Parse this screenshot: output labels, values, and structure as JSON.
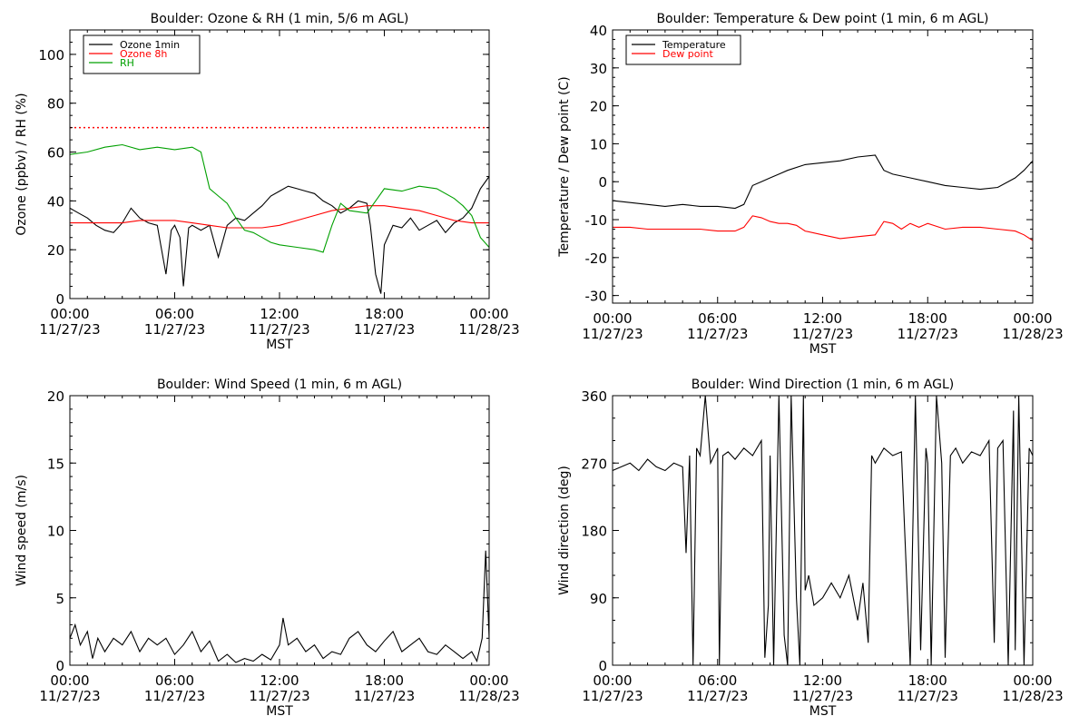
{
  "chart_data": [
    {
      "id": "ozone",
      "type": "line",
      "title": "Boulder: Ozone & RH (1 min, 5/6 m AGL)",
      "xlabel": "MST",
      "ylabel": "Ozone (ppbv) / RH (%)",
      "xlim": [
        0,
        24
      ],
      "ylim": [
        0,
        110
      ],
      "yticks": [
        0,
        20,
        40,
        60,
        80,
        100
      ],
      "xtick_times": [
        "00:00",
        "06:00",
        "12:00",
        "18:00",
        "00:00"
      ],
      "xtick_dates": [
        "11/27/23",
        "11/27/23",
        "11/27/23",
        "11/27/23",
        "11/28/23"
      ],
      "legend": {
        "position": "top-left",
        "items": [
          {
            "label": "Ozone 1min",
            "color": "#000000"
          },
          {
            "label": "Ozone 8h",
            "color": "#ff0000"
          },
          {
            "label": "RH",
            "color": "#00a000"
          }
        ]
      },
      "reference_line": {
        "y": 70,
        "color": "#ff0000",
        "style": "dotted"
      },
      "series": [
        {
          "name": "Ozone 1min",
          "color": "#000000",
          "x": [
            0,
            0.5,
            1,
            1.5,
            2,
            2.5,
            3,
            3.5,
            4,
            4.5,
            5,
            5.2,
            5.5,
            5.8,
            6,
            6.3,
            6.5,
            6.8,
            7,
            7.5,
            8,
            8.5,
            9,
            9.5,
            10,
            10.5,
            11,
            11.5,
            12,
            12.5,
            13,
            13.5,
            14,
            14.5,
            15,
            15.5,
            16,
            16.5,
            17,
            17.2,
            17.5,
            17.8,
            18,
            18.5,
            19,
            19.5,
            20,
            20.5,
            21,
            21.5,
            22,
            22.5,
            23,
            23.5,
            24
          ],
          "y": [
            37,
            35,
            33,
            30,
            28,
            27,
            31,
            37,
            33,
            31,
            30,
            22,
            10,
            28,
            30,
            25,
            5,
            29,
            30,
            28,
            30,
            17,
            30,
            33,
            32,
            35,
            38,
            42,
            44,
            46,
            45,
            44,
            43,
            40,
            38,
            35,
            37,
            40,
            39,
            30,
            10,
            2,
            22,
            30,
            29,
            33,
            28,
            30,
            32,
            27,
            31,
            33,
            37,
            45,
            50
          ]
        },
        {
          "name": "Ozone 8h",
          "color": "#ff0000",
          "x": [
            0,
            1,
            2,
            3,
            4,
            5,
            6,
            7,
            8,
            9,
            10,
            11,
            12,
            13,
            14,
            15,
            16,
            17,
            18,
            19,
            20,
            21,
            22,
            23,
            24
          ],
          "y": [
            31,
            31,
            31,
            31,
            32,
            32,
            32,
            31,
            30,
            29,
            29,
            29,
            30,
            32,
            34,
            36,
            37,
            38,
            38,
            37,
            36,
            34,
            32,
            31,
            31
          ]
        },
        {
          "name": "RH",
          "color": "#00a000",
          "x": [
            0,
            1,
            2,
            3,
            4,
            5,
            6,
            7,
            7.5,
            8,
            8.5,
            9,
            9.5,
            10,
            10.5,
            11,
            11.5,
            12,
            13,
            14,
            14.5,
            15,
            15.5,
            16,
            17,
            17.5,
            18,
            19,
            20,
            21,
            22,
            22.5,
            23,
            23.5,
            24
          ],
          "y": [
            59,
            60,
            62,
            63,
            61,
            62,
            61,
            62,
            60,
            45,
            42,
            39,
            33,
            28,
            27,
            25,
            23,
            22,
            21,
            20,
            19,
            30,
            39,
            36,
            35,
            40,
            45,
            44,
            46,
            45,
            41,
            38,
            34,
            25,
            21
          ]
        }
      ]
    },
    {
      "id": "temp",
      "type": "line",
      "title": "Boulder: Temperature & Dew point (1 min, 6 m AGL)",
      "xlabel": "MST",
      "ylabel": "Temperature / Dew point (C)",
      "xlim": [
        0,
        24
      ],
      "ylim": [
        -32,
        40
      ],
      "yticks": [
        -30,
        -20,
        -10,
        0,
        10,
        20,
        30,
        40
      ],
      "xtick_times": [
        "00:00",
        "06:00",
        "12:00",
        "18:00",
        "00:00"
      ],
      "xtick_dates": [
        "11/27/23",
        "11/27/23",
        "11/27/23",
        "11/27/23",
        "11/28/23"
      ],
      "legend": {
        "position": "top-left",
        "items": [
          {
            "label": "Temperature",
            "color": "#000000"
          },
          {
            "label": "Dew point",
            "color": "#ff0000"
          }
        ]
      },
      "series": [
        {
          "name": "Temperature",
          "color": "#000000",
          "x": [
            0,
            1,
            2,
            3,
            4,
            5,
            6,
            7,
            7.5,
            8,
            8.5,
            9,
            9.5,
            10,
            11,
            12,
            13,
            14,
            15,
            15.5,
            16,
            17,
            18,
            19,
            20,
            21,
            22,
            23,
            23.5,
            24
          ],
          "y": [
            -5,
            -5.5,
            -6,
            -6.5,
            -6,
            -6.5,
            -6.5,
            -7,
            -6,
            -1,
            0,
            1,
            2,
            3,
            4.5,
            5,
            5.5,
            6.5,
            7,
            3,
            2,
            1,
            0,
            -1,
            -1.5,
            -2,
            -1.5,
            1,
            3,
            5.5
          ]
        },
        {
          "name": "Dew point",
          "color": "#ff0000",
          "x": [
            0,
            1,
            2,
            3,
            4,
            5,
            6,
            7,
            7.5,
            8,
            8.5,
            9,
            9.5,
            10,
            10.5,
            11,
            12,
            13,
            14,
            15,
            15.5,
            16,
            16.5,
            17,
            17.5,
            18,
            19,
            20,
            21,
            22,
            23,
            23.5,
            24
          ],
          "y": [
            -12,
            -12,
            -12.5,
            -12.5,
            -12.5,
            -12.5,
            -13,
            -13,
            -12,
            -9,
            -9.5,
            -10.5,
            -11,
            -11,
            -11.5,
            -13,
            -14,
            -15,
            -14.5,
            -14,
            -10.5,
            -11,
            -12.5,
            -11,
            -12,
            -11,
            -12.5,
            -12,
            -12,
            -12.5,
            -13,
            -14,
            -15.5
          ]
        }
      ]
    },
    {
      "id": "wspd",
      "type": "line",
      "title": "Boulder: Wind Speed (1 min, 6 m AGL)",
      "xlabel": "MST",
      "ylabel": "Wind speed (m/s)",
      "xlim": [
        0,
        24
      ],
      "ylim": [
        0,
        20
      ],
      "yticks": [
        0,
        5,
        10,
        15,
        20
      ],
      "xtick_times": [
        "00:00",
        "06:00",
        "12:00",
        "18:00",
        "00:00"
      ],
      "xtick_dates": [
        "11/27/23",
        "11/27/23",
        "11/27/23",
        "11/27/23",
        "11/28/23"
      ],
      "series": [
        {
          "name": "",
          "color": "#000000",
          "x": [
            0,
            0.3,
            0.6,
            1,
            1.3,
            1.6,
            2,
            2.5,
            3,
            3.5,
            4,
            4.5,
            5,
            5.5,
            6,
            6.5,
            7,
            7.5,
            8,
            8.5,
            9,
            9.5,
            10,
            10.5,
            11,
            11.5,
            12,
            12.2,
            12.5,
            13,
            13.5,
            14,
            14.5,
            15,
            15.5,
            16,
            16.5,
            17,
            17.5,
            18,
            18.5,
            19,
            19.5,
            20,
            20.5,
            21,
            21.5,
            22,
            22.5,
            23,
            23.3,
            23.6,
            23.8,
            24
          ],
          "y": [
            2,
            3,
            1.5,
            2.5,
            0.5,
            2,
            1,
            2,
            1.5,
            2.5,
            1,
            2,
            1.5,
            2,
            0.8,
            1.5,
            2.5,
            1,
            1.8,
            0.3,
            0.8,
            0.2,
            0.5,
            0.3,
            0.8,
            0.4,
            1.5,
            3.5,
            1.5,
            2,
            1,
            1.5,
            0.5,
            1,
            0.8,
            2,
            2.5,
            1.5,
            1,
            1.8,
            2.5,
            1,
            1.5,
            2,
            1,
            0.8,
            1.5,
            1,
            0.5,
            1,
            0.3,
            2,
            8.5,
            2
          ]
        }
      ]
    },
    {
      "id": "wdir",
      "type": "line",
      "title": "Boulder: Wind Direction (1 min, 6 m AGL)",
      "xlabel": "MST",
      "ylabel": "Wind direction (deg)",
      "xlim": [
        0,
        24
      ],
      "ylim": [
        0,
        360
      ],
      "yticks": [
        0,
        90,
        180,
        270,
        360
      ],
      "xtick_times": [
        "00:00",
        "06:00",
        "12:00",
        "18:00",
        "00:00"
      ],
      "xtick_dates": [
        "11/27/23",
        "11/27/23",
        "11/27/23",
        "11/27/23",
        "11/28/23"
      ],
      "series": [
        {
          "name": "",
          "color": "#000000",
          "x": [
            0,
            0.5,
            1,
            1.5,
            2,
            2.5,
            3,
            3.5,
            4,
            4.2,
            4.4,
            4.6,
            4.8,
            5,
            5.3,
            5.6,
            6,
            6.1,
            6.3,
            6.6,
            7,
            7.5,
            8,
            8.5,
            8.7,
            8.9,
            9,
            9.2,
            9.5,
            9.8,
            10,
            10.2,
            10.5,
            10.7,
            10.9,
            11,
            11.2,
            11.5,
            12,
            12.5,
            13,
            13.5,
            14,
            14.3,
            14.6,
            14.8,
            15,
            15.5,
            16,
            16.5,
            17,
            17.3,
            17.6,
            17.9,
            18,
            18.2,
            18.5,
            18.8,
            19,
            19.3,
            19.6,
            20,
            20.5,
            21,
            21.5,
            21.8,
            22,
            22.3,
            22.6,
            22.9,
            23,
            23.2,
            23.5,
            23.8,
            24
          ],
          "y": [
            260,
            265,
            270,
            260,
            275,
            265,
            260,
            270,
            265,
            150,
            280,
            0,
            290,
            280,
            360,
            270,
            290,
            0,
            280,
            285,
            275,
            290,
            280,
            300,
            10,
            80,
            280,
            0,
            360,
            40,
            0,
            360,
            90,
            0,
            360,
            100,
            120,
            80,
            90,
            110,
            90,
            120,
            60,
            110,
            30,
            280,
            270,
            290,
            280,
            285,
            0,
            360,
            20,
            290,
            270,
            0,
            360,
            270,
            10,
            280,
            290,
            270,
            285,
            280,
            300,
            30,
            290,
            300,
            0,
            340,
            20,
            360,
            0,
            290,
            280
          ]
        }
      ]
    }
  ]
}
